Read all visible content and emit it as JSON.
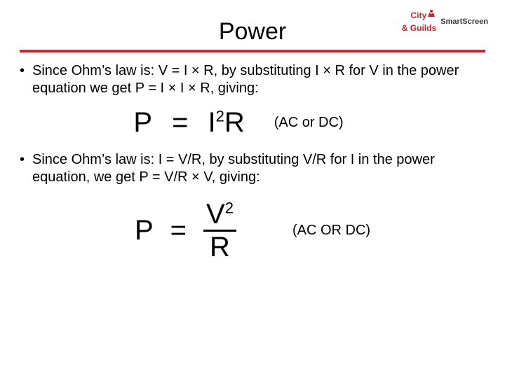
{
  "colors": {
    "accent": "#c9252c",
    "text": "#000000",
    "bg": "#ffffff",
    "logo_text": "#3a3a3a"
  },
  "logo": {
    "line1": "City",
    "amp": "&",
    "line2": "Guilds",
    "smartscreen": "SmartScreen"
  },
  "title": "Power",
  "bullet1": "Since Ohm’s law is: V = I × R, by substituting I × R for V in the power equation we get P = I × I × R, giving:",
  "eq1": {
    "P": "P",
    "eq": "=",
    "rhs_html": "I<sup class='s'>2</sup>R"
  },
  "note1": "(AC or DC)",
  "bullet2": "Since Ohm’s law is: I = V/R, by substituting V/R for I in the power equation, we get P = V/R × V, giving:",
  "eq2": {
    "P": "P",
    "eq": "=",
    "num_html": "V<sup class='s'>2</sup>",
    "den": "R"
  },
  "note2": "(AC OR DC)",
  "typography": {
    "title_fontsize": 34,
    "body_fontsize": 20,
    "equation_fontsize": 40,
    "note_fontsize": 20
  }
}
